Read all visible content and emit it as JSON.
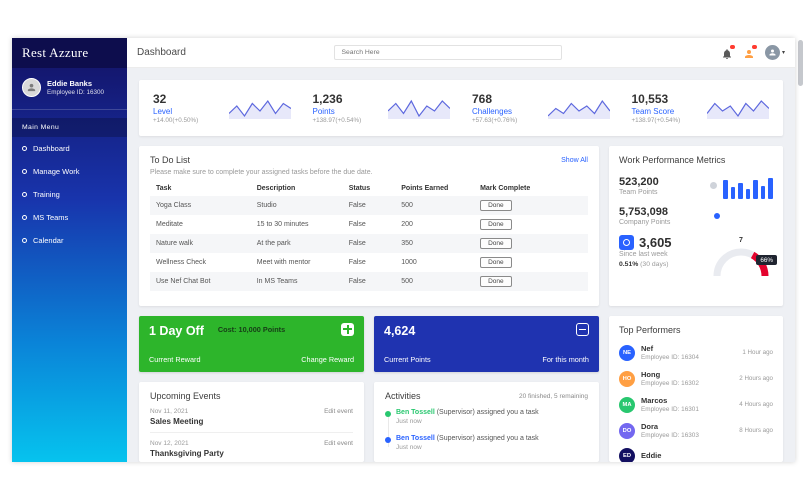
{
  "colors": {
    "accent_blue": "#2962ff",
    "sidebar_gradient_top": "#131061",
    "sidebar_gradient_bottom": "#06c3ee",
    "green_card": "#2db52b",
    "blue_card": "#1f33b0",
    "gauge_red": "#e4032e"
  },
  "icons": [
    "bell-icon",
    "messages-icon",
    "user-avatar",
    "gift-icon",
    "wallet-icon",
    "coin-icon",
    "circle-bullet-icon"
  ],
  "sidebar": {
    "brand": "Rest Azzure",
    "user": {
      "name": "Eddie Banks",
      "employee_id": "Employee ID: 16300"
    },
    "section_label": "Main Menu",
    "items": [
      {
        "label": "Dashboard"
      },
      {
        "label": "Manage Work"
      },
      {
        "label": "Training"
      },
      {
        "label": "MS Teams"
      },
      {
        "label": "Calendar"
      }
    ]
  },
  "header": {
    "title": "Dashboard",
    "search_placeholder": "Search Here"
  },
  "stats": [
    {
      "value": "32",
      "label": "Level",
      "delta": "+14.00(+0.50%)"
    },
    {
      "value": "1,236",
      "label": "Points",
      "delta": "+138.97(+0.54%)"
    },
    {
      "value": "768",
      "label": "Challenges",
      "delta": "+57.63(+0.76%)"
    },
    {
      "value": "10,553",
      "label": "Team Score",
      "delta": "+138.97(+0.54%)"
    }
  ],
  "todo": {
    "title": "To Do List",
    "show_all": "Show All",
    "subtitle": "Please make sure to complete your assigned tasks before the due date.",
    "columns": [
      "Task",
      "Description",
      "Status",
      "Points Earned",
      "Mark Complete"
    ],
    "rows": [
      {
        "task": "Yoga Class",
        "description": "Studio",
        "status": "False",
        "points": "500",
        "action": "Done"
      },
      {
        "task": "Meditate",
        "description": "15 to 30 minutes",
        "status": "False",
        "points": "200",
        "action": "Done"
      },
      {
        "task": "Nature walk",
        "description": "At the park",
        "status": "False",
        "points": "350",
        "action": "Done"
      },
      {
        "task": "Wellness Check",
        "description": "Meet with mentor",
        "status": "False",
        "points": "1000",
        "action": "Done"
      },
      {
        "task": "Use Nef Chat Bot",
        "description": "In MS Teams",
        "status": "False",
        "points": "500",
        "action": "Done"
      }
    ]
  },
  "metrics": {
    "title": "Work Performance Metrics",
    "team_points_value": "523,200",
    "team_points_label": "Team Points",
    "company_points_value": "5,753,098",
    "company_points_label": "Company Points",
    "week_value": "3,605",
    "week_label": "Since last week",
    "week_percent": "0.51%",
    "week_period": "(30 days)",
    "gauge_top": "7",
    "gauge_label": "66%"
  },
  "reward_card": {
    "title": "1 Day Off",
    "cost": "Cost: 10,000 Points",
    "label": "Current Reward",
    "action": "Change Reward"
  },
  "points_card": {
    "value": "4,624",
    "label": "Current Points",
    "period": "For this month"
  },
  "events": {
    "title": "Upcoming Events",
    "items": [
      {
        "date": "Nov 11, 2021",
        "name": "Sales Meeting",
        "action": "Edit event"
      },
      {
        "date": "Nov 12, 2021",
        "name": "Thanksgiving Party",
        "action": "Edit event"
      }
    ]
  },
  "activities": {
    "title": "Activities",
    "summary": "20 finished, 5 remaining",
    "items": [
      {
        "actor": "Ben Tossell",
        "text": " (Supervisor) assigned you a task",
        "time": "Just now",
        "color": "#28c76f"
      },
      {
        "actor": "Ben Tossell",
        "text": " (Supervisor) assigned you a task",
        "time": "Just now",
        "color": "#2962ff"
      }
    ]
  },
  "performers": {
    "title": "Top Performers",
    "items": [
      {
        "initials": "NE",
        "name": "Nef",
        "employee_id": "Employee ID: 16304",
        "time": "1 Hour ago",
        "color": "#2962ff"
      },
      {
        "initials": "HO",
        "name": "Hong",
        "employee_id": "Employee ID: 16302",
        "time": "2 Hours ago",
        "color": "#ff9f43"
      },
      {
        "initials": "MA",
        "name": "Marcos",
        "employee_id": "Employee ID: 16301",
        "time": "4 Hours ago",
        "color": "#28c76f"
      },
      {
        "initials": "DO",
        "name": "Dora",
        "employee_id": "Employee ID: 16303",
        "time": "8 Hours ago",
        "color": "#7367f0"
      },
      {
        "initials": "ED",
        "name": "Eddie",
        "employee_id": "",
        "time": "",
        "color": "#131061"
      }
    ]
  },
  "chart_data": [
    {
      "type": "line",
      "name": "spark-level",
      "values": [
        4,
        7,
        3,
        8,
        5,
        9,
        4,
        8,
        6
      ],
      "color": "#5d68de",
      "area": true
    },
    {
      "type": "line",
      "name": "spark-points",
      "values": [
        5,
        8,
        4,
        9,
        3,
        7,
        5,
        9,
        6
      ],
      "color": "#5d68de",
      "area": true
    },
    {
      "type": "line",
      "name": "spark-challenges",
      "values": [
        3,
        6,
        4,
        8,
        5,
        7,
        4,
        9,
        5
      ],
      "color": "#5d68de",
      "area": true
    },
    {
      "type": "line",
      "name": "spark-teamscore",
      "values": [
        4,
        8,
        5,
        7,
        3,
        8,
        5,
        9,
        6
      ],
      "color": "#5d68de",
      "area": true
    },
    {
      "type": "bar",
      "name": "team-bars",
      "values": [
        70,
        45,
        60,
        38,
        72,
        50,
        78
      ],
      "color": "#2962ff"
    },
    {
      "type": "gauge",
      "name": "performance-gauge",
      "percent": 66,
      "label": "66%",
      "color": "#e4032e",
      "track": "#e9ebf0"
    }
  ]
}
